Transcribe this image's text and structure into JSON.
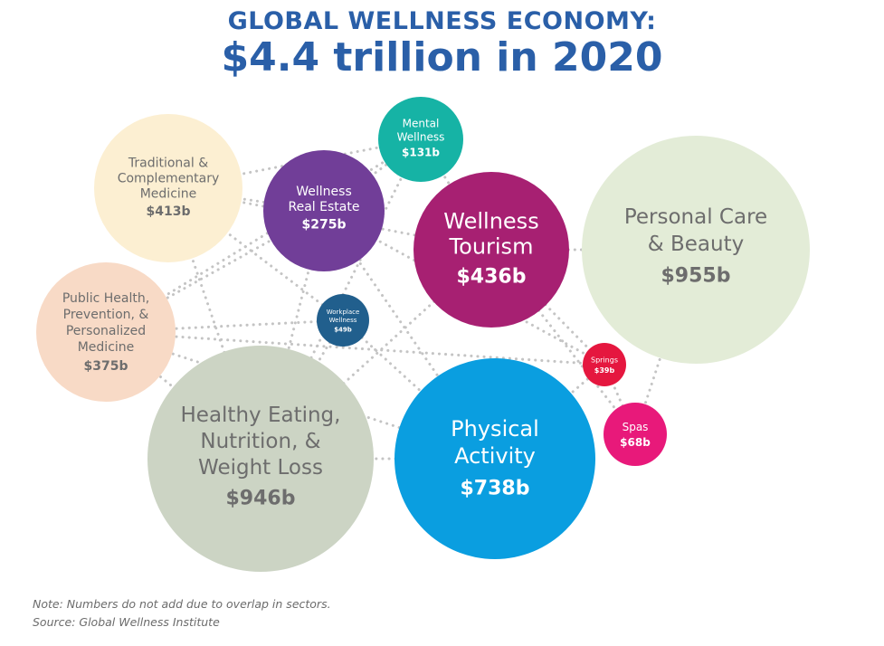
{
  "header": {
    "title_line1": "GLOBAL WELLNESS ECONOMY:",
    "title_line2": "$4.4 trillion in 2020"
  },
  "footnote": {
    "note": "Note: Numbers do not add due to overlap in sectors.",
    "source": "Source: Global Wellness Institute"
  },
  "colors": {
    "title": "#2a5fa8",
    "connector": "#c4c4c4",
    "note_text": "#6b6b6b"
  },
  "sectors": [
    {
      "id": "personal-care",
      "name_lines": [
        "Personal Care",
        "& Beauty"
      ],
      "value": "$955b",
      "fill": "#e3ecd7",
      "text": "#6d6d6d"
    },
    {
      "id": "healthy-eating",
      "name_lines": [
        "Healthy Eating,",
        "Nutrition, &",
        "Weight Loss"
      ],
      "value": "$946b",
      "fill": "#ccd4c4",
      "text": "#6d6d6d"
    },
    {
      "id": "physical-activity",
      "name_lines": [
        "Physical",
        "Activity"
      ],
      "value": "$738b",
      "fill": "#0a9ee0",
      "text": "#ffffff"
    },
    {
      "id": "wellness-tourism",
      "name_lines": [
        "Wellness",
        "Tourism"
      ],
      "value": "$436b",
      "fill": "#a72072",
      "text": "#ffffff"
    },
    {
      "id": "traditional-medicine",
      "name_lines": [
        "Traditional &",
        "Complementary",
        "Medicine"
      ],
      "value": "$413b",
      "fill": "#fcefd2",
      "text": "#6d6d6d"
    },
    {
      "id": "public-health",
      "name_lines": [
        "Public Health,",
        "Prevention, &",
        "Personalized",
        "Medicine"
      ],
      "value": "$375b",
      "fill": "#f8dac6",
      "text": "#6d6d6d"
    },
    {
      "id": "wellness-real-estate",
      "name_lines": [
        "Wellness",
        "Real Estate"
      ],
      "value": "$275b",
      "fill": "#713e98",
      "text": "#ffffff"
    },
    {
      "id": "mental-wellness",
      "name_lines": [
        "Mental",
        "Wellness"
      ],
      "value": "$131b",
      "fill": "#16b3a5",
      "text": "#ffffff"
    },
    {
      "id": "spas",
      "name_lines": [
        "Spas"
      ],
      "value": "$68b",
      "fill": "#e8197a",
      "text": "#ffffff"
    },
    {
      "id": "workplace-wellness",
      "name_lines": [
        "Workplace",
        "Wellness"
      ],
      "value": "$49b",
      "fill": "#215f8d",
      "text": "#ffffff"
    },
    {
      "id": "springs",
      "name_lines": [
        "Springs"
      ],
      "value": "$39b",
      "fill": "#e5173f",
      "text": "#ffffff"
    }
  ]
}
